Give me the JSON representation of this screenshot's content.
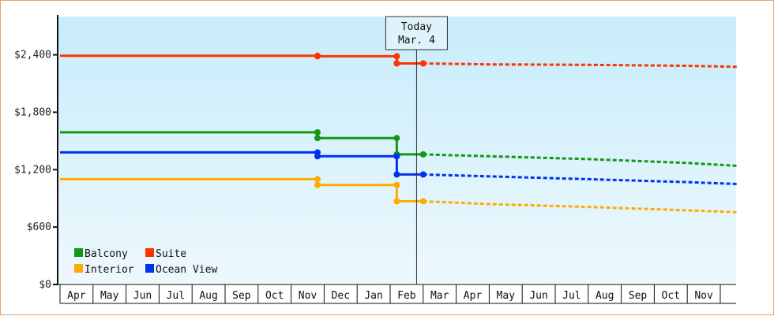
{
  "chart_data": {
    "type": "line",
    "title": "",
    "xlabel": "",
    "ylabel": "",
    "ylim": [
      0,
      2800
    ],
    "y_ticks": [
      {
        "value": 0,
        "label": "$0"
      },
      {
        "value": 600,
        "label": "$600"
      },
      {
        "value": 1200,
        "label": "$1,200"
      },
      {
        "value": 1800,
        "label": "$1,800"
      },
      {
        "value": 2400,
        "label": "$2,400"
      }
    ],
    "months": [
      "Apr",
      "May",
      "Jun",
      "Jul",
      "Aug",
      "Sep",
      "Oct",
      "Nov",
      "Dec",
      "Jan",
      "Feb",
      "Mar",
      "Apr",
      "May",
      "Jun",
      "Jul",
      "Aug",
      "Sep",
      "Oct",
      "Nov"
    ],
    "today": {
      "line1": "Today",
      "line2": "Mar. 4",
      "month_index": 10.8
    },
    "grid": false,
    "legend_position": "bottom-left",
    "series": [
      {
        "name": "Suite",
        "color": "#ff3300",
        "history": [
          [
            0,
            2390
          ],
          [
            7.8,
            2390
          ],
          [
            7.8,
            2385
          ],
          [
            10.2,
            2385
          ],
          [
            10.2,
            2310
          ],
          [
            11.0,
            2310
          ]
        ],
        "forecast": [
          [
            11.0,
            2310
          ],
          [
            13.0,
            2300
          ],
          [
            16.0,
            2295
          ],
          [
            19.0,
            2285
          ],
          [
            20.5,
            2275
          ]
        ]
      },
      {
        "name": "Balcony",
        "color": "#119911",
        "history": [
          [
            0,
            1590
          ],
          [
            7.8,
            1590
          ],
          [
            7.8,
            1530
          ],
          [
            10.2,
            1530
          ],
          [
            10.2,
            1360
          ],
          [
            11.0,
            1360
          ]
        ],
        "forecast": [
          [
            11.0,
            1360
          ],
          [
            13.0,
            1340
          ],
          [
            16.0,
            1310
          ],
          [
            19.0,
            1270
          ],
          [
            20.5,
            1240
          ]
        ]
      },
      {
        "name": "Ocean View",
        "color": "#0033ee",
        "history": [
          [
            0,
            1380
          ],
          [
            7.8,
            1380
          ],
          [
            7.8,
            1340
          ],
          [
            10.2,
            1340
          ],
          [
            10.2,
            1150
          ],
          [
            11.0,
            1150
          ]
        ],
        "forecast": [
          [
            11.0,
            1150
          ],
          [
            13.0,
            1130
          ],
          [
            16.0,
            1100
          ],
          [
            19.0,
            1070
          ],
          [
            20.5,
            1050
          ]
        ]
      },
      {
        "name": "Interior",
        "color": "#ffaa00",
        "history": [
          [
            0,
            1100
          ],
          [
            7.8,
            1100
          ],
          [
            7.8,
            1040
          ],
          [
            10.2,
            1040
          ],
          [
            10.2,
            870
          ],
          [
            11.0,
            870
          ]
        ],
        "forecast": [
          [
            11.0,
            870
          ],
          [
            13.0,
            840
          ],
          [
            16.0,
            810
          ],
          [
            19.0,
            775
          ],
          [
            20.5,
            755
          ]
        ]
      }
    ],
    "legend": [
      {
        "name": "Balcony",
        "color": "#119911"
      },
      {
        "name": "Suite",
        "color": "#ff3300"
      },
      {
        "name": "Interior",
        "color": "#ffaa00"
      },
      {
        "name": "Ocean View",
        "color": "#0033ee"
      }
    ]
  }
}
